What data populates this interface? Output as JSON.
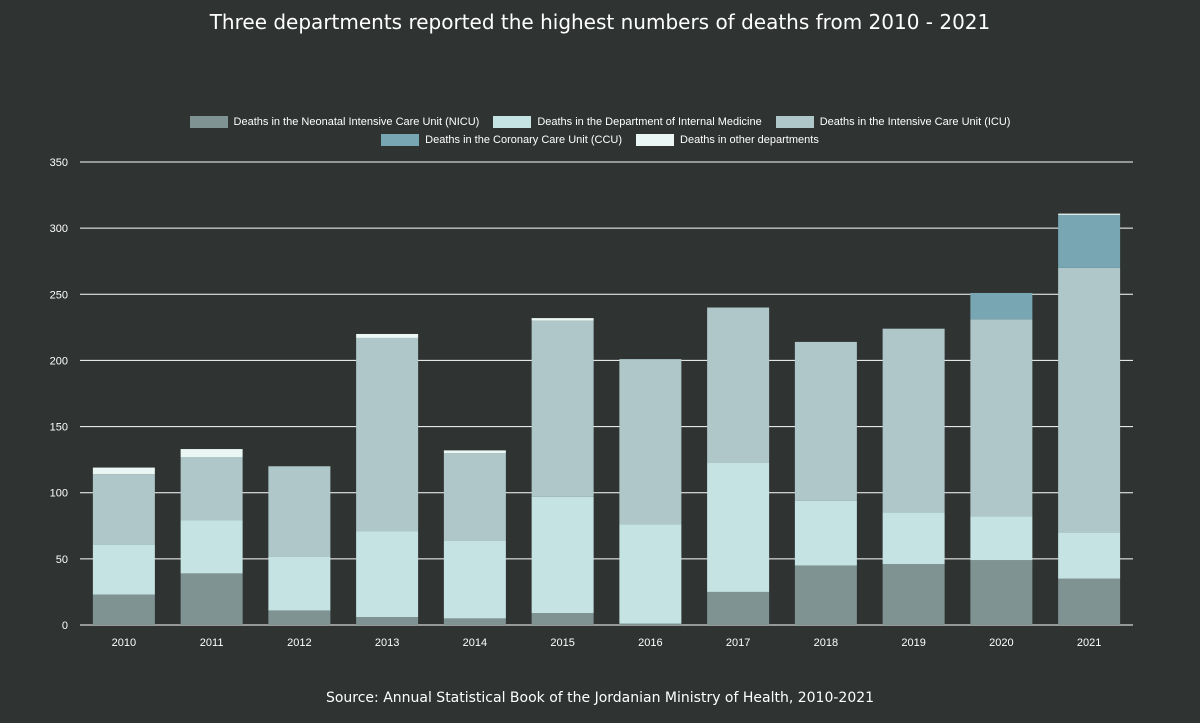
{
  "chart_data": {
    "type": "bar",
    "stacked": true,
    "title": "Three departments reported the highest numbers of deaths from 2010 - 2021",
    "source": "Source: Annual Statistical Book of the Jordanian Ministry of Health, 2010-2021",
    "categories": [
      "2010",
      "2011",
      "2012",
      "2013",
      "2014",
      "2015",
      "2016",
      "2017",
      "2018",
      "2019",
      "2020",
      "2021"
    ],
    "ylim": [
      0,
      350
    ],
    "yticks": [
      0,
      50,
      100,
      150,
      200,
      250,
      300,
      350
    ],
    "grid": true,
    "legend_position": "top-center",
    "series": [
      {
        "name": "Deaths in the Neonatal Intensive Care Unit (NICU)",
        "color": "#7f9392",
        "values": [
          23,
          39,
          11,
          6,
          5,
          9,
          1,
          25,
          45,
          46,
          49,
          35
        ]
      },
      {
        "name": "Deaths in the Department of Internal Medicine",
        "color": "#c4e3e2",
        "values": [
          38,
          40,
          41,
          65,
          59,
          88,
          75,
          98,
          49,
          39,
          33,
          35
        ]
      },
      {
        "name": "Deaths in the Intensive Care Unit (ICU)",
        "color": "#afc7c8",
        "values": [
          53,
          48,
          68,
          146,
          66,
          133,
          125,
          117,
          120,
          139,
          149,
          200
        ]
      },
      {
        "name": "Deaths in the Coronary Care Unit (CCU)",
        "color": "#78a7b3",
        "values": [
          0,
          0,
          0,
          0,
          0,
          0,
          0,
          0,
          0,
          0,
          20,
          40
        ]
      },
      {
        "name": "Deaths in other departments",
        "color": "#eaf7f4",
        "values": [
          5,
          6,
          0,
          3,
          2,
          2,
          0,
          0,
          0,
          0,
          0,
          1
        ]
      }
    ]
  }
}
